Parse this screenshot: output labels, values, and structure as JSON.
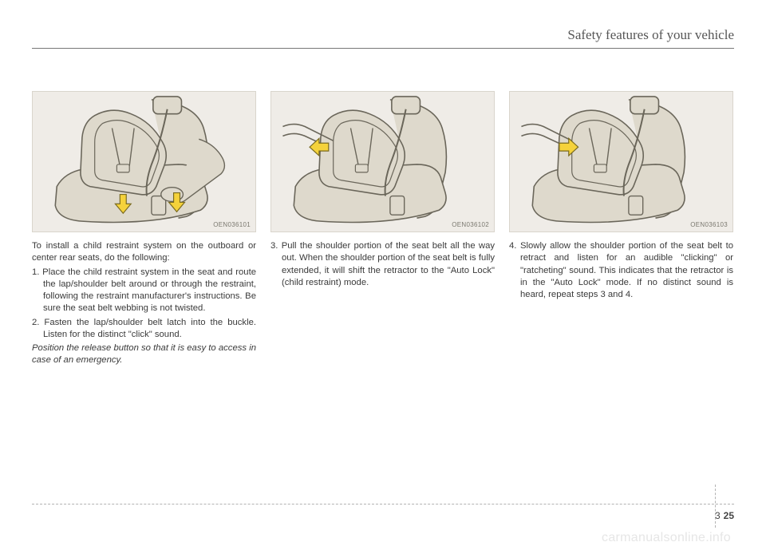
{
  "header": {
    "title": "Safety features of your vehicle"
  },
  "columns": [
    {
      "figure_id": "OEN036101",
      "paragraphs": [
        {
          "type": "p",
          "text": "To install a child restraint system on the outboard or center rear seats, do the following:"
        },
        {
          "type": "step",
          "text": "1. Place the child restraint system in the seat and route the lap/shoulder belt around or through the restraint, following the restraint manufacturer's instructions. Be sure the seat belt webbing is not twisted."
        },
        {
          "type": "step",
          "text": "2. Fasten the lap/shoulder belt latch into the buckle. Listen for the distinct \"click\" sound."
        },
        {
          "type": "italic",
          "text": "Position the release button so that it is easy to access in case of an emergency."
        }
      ]
    },
    {
      "figure_id": "OEN036102",
      "paragraphs": [
        {
          "type": "step",
          "text": "3. Pull the shoulder portion of the seat belt all the way out. When the shoulder portion of the seat belt is fully extended, it will shift the retractor to the \"Auto Lock\" (child restraint) mode."
        }
      ]
    },
    {
      "figure_id": "OEN036103",
      "paragraphs": [
        {
          "type": "step",
          "text": "4. Slowly allow the shoulder portion of the seat belt to retract and listen for an audible \"clicking\" or \"ratcheting\" sound. This indicates that the retractor is in the \"Auto Lock\" mode. If no distinct sound is heard, repeat steps 3 and 4."
        }
      ]
    }
  ],
  "footer": {
    "section": "3",
    "page": "25"
  },
  "watermark": "carmanualsonline.info",
  "colors": {
    "figure_bg": "#efece7",
    "seat_fill": "#ded9cc",
    "seat_stroke": "#6a665a",
    "arrow_fill": "#f5d23b",
    "arrow_stroke": "#7a6b1f"
  },
  "figures": {
    "variant_arrows": [
      {
        "dir": "down",
        "count": 2,
        "hands": true
      },
      {
        "dir": "left",
        "count": 1,
        "hands": false
      },
      {
        "dir": "right",
        "count": 1,
        "hands": false
      }
    ]
  }
}
